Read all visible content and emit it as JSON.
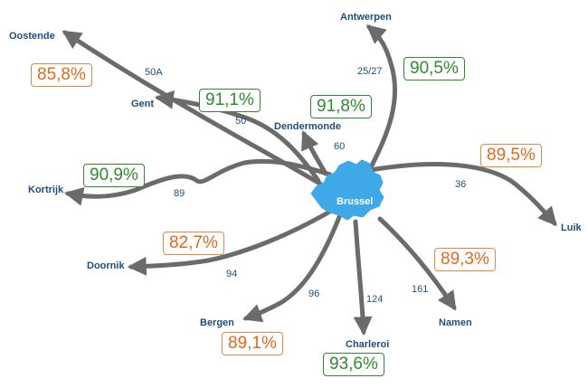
{
  "colors": {
    "line": "#6b6b6b",
    "center_fill": "#3ea9e6",
    "city_text": "#1f4e79",
    "good": "#2e8b2e",
    "warn": "#e06a1b"
  },
  "center": {
    "label": "Brussel"
  },
  "cities": {
    "oostende": "Oostende",
    "gent": "Gent",
    "antwerpen": "Antwerpen",
    "dendermonde": "Dendermonde",
    "kortrijk": "Kortrijk",
    "doornik": "Doornik",
    "bergen": "Bergen",
    "charleroi": "Charleroi",
    "namen": "Namen",
    "luik": "Luik"
  },
  "routes": {
    "r50a": "50A",
    "r50": "50",
    "r25_27": "25/27",
    "r60": "60",
    "r89": "89",
    "r94": "94",
    "r96": "96",
    "r124": "124",
    "r161": "161",
    "r36": "36"
  },
  "punctuality": {
    "oostende": {
      "value": "85,8%",
      "status": "orange"
    },
    "gent": {
      "value": "91,1%",
      "status": "green"
    },
    "dendermonde": {
      "value": "91,8%",
      "status": "green"
    },
    "antwerpen": {
      "value": "90,5%",
      "status": "green"
    },
    "luik": {
      "value": "89,5%",
      "status": "orange"
    },
    "kortrijk": {
      "value": "90,9%",
      "status": "green"
    },
    "doornik": {
      "value": "82,7%",
      "status": "orange"
    },
    "namen": {
      "value": "89,3%",
      "status": "orange"
    },
    "bergen": {
      "value": "89,1%",
      "status": "orange"
    },
    "charleroi": {
      "value": "93,6%",
      "status": "green"
    }
  }
}
